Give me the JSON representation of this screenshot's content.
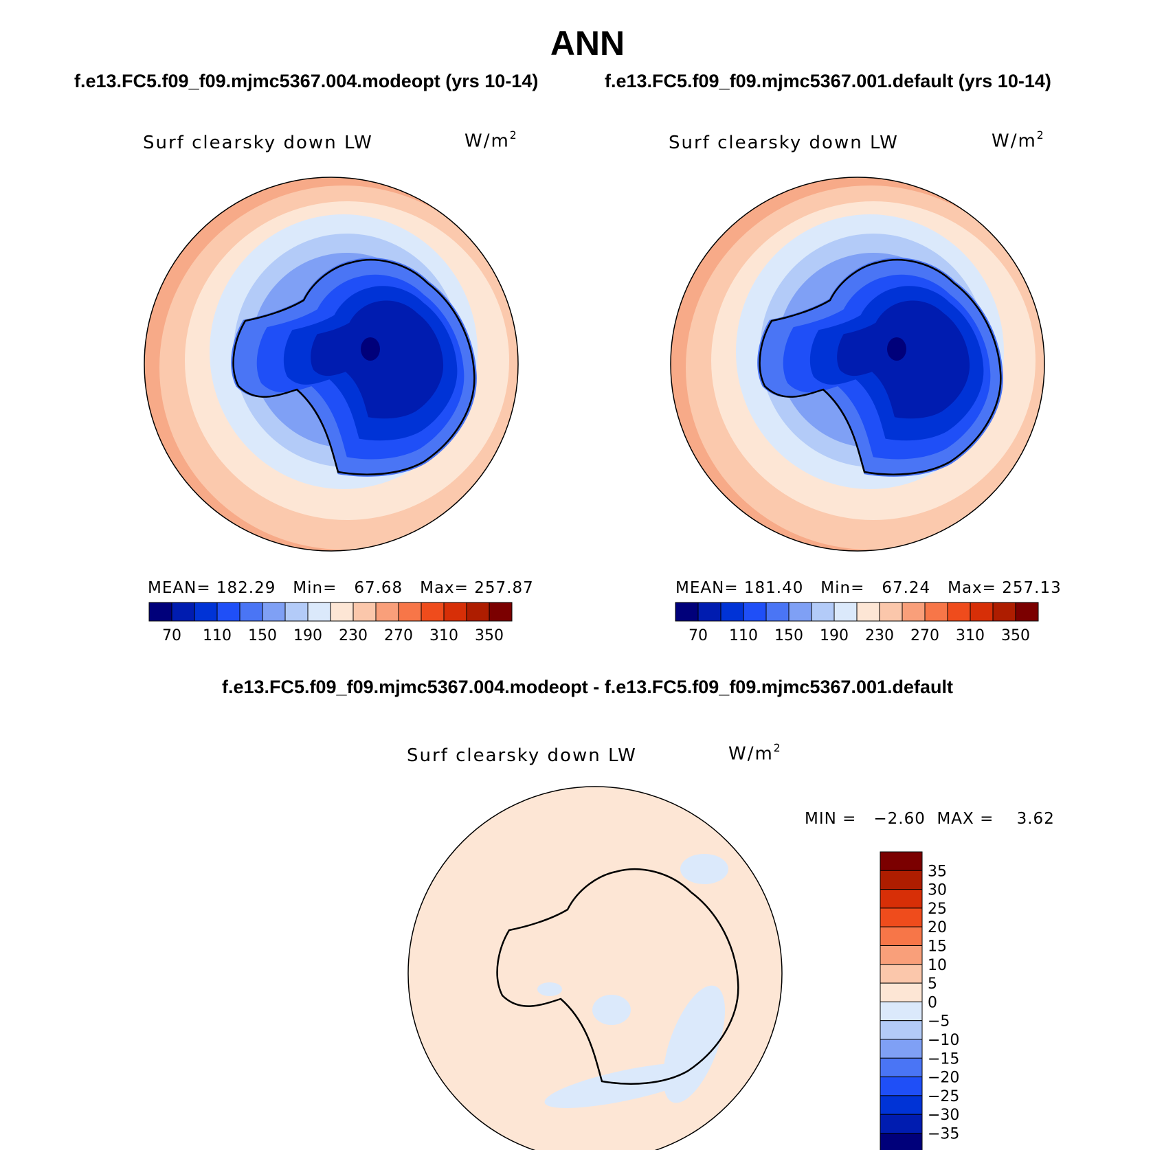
{
  "title": "ANN",
  "panels": [
    {
      "run_title": "f.e13.FC5.f09_f09.mjmc5367.004.modeopt (yrs 10-14)",
      "variable": "Surf clearsky down LW",
      "units_base": "W/m",
      "units_sup": "2",
      "stats": "MEAN= 182.29   Min=   67.68   Max= 257.87"
    },
    {
      "run_title": "f.e13.FC5.f09_f09.mjmc5367.001.default (yrs 10-14)",
      "variable": "Surf clearsky down LW",
      "units_base": "W/m",
      "units_sup": "2",
      "stats": "MEAN= 181.40   Min=   67.24   Max= 257.13"
    }
  ],
  "difference": {
    "title": "f.e13.FC5.f09_f09.mjmc5367.004.modeopt - f.e13.FC5.f09_f09.mjmc5367.001.default",
    "variable": "Surf clearsky down LW",
    "units_base": "W/m",
    "units_sup": "2",
    "stats": "MIN =   −2.60  MAX =    3.62"
  },
  "colorbars": {
    "absolute": {
      "colors": [
        "#00007a",
        "#001cb0",
        "#0033d6",
        "#1f4ff7",
        "#4a75f5",
        "#7fa0f5",
        "#b3cbf8",
        "#dbe9fb",
        "#fde6d5",
        "#fbc7ab",
        "#f99f7a",
        "#f77648",
        "#ef4c1c",
        "#d72f07",
        "#ae1d00",
        "#7b0000"
      ],
      "labels": [
        "70",
        "110",
        "150",
        "190",
        "230",
        "270",
        "310",
        "350"
      ]
    },
    "difference": {
      "colors": [
        "#00007a",
        "#001cb0",
        "#0033d6",
        "#1f4ff7",
        "#4a75f5",
        "#7fa0f5",
        "#b3cbf8",
        "#dbe9fb",
        "#fde6d5",
        "#fbc7ab",
        "#f99f7a",
        "#f77648",
        "#ef4c1c",
        "#d72f07",
        "#ae1d00",
        "#7b0000"
      ],
      "labels": [
        "−35",
        "−30",
        "−25",
        "−20",
        "−15",
        "−10",
        "−5",
        "0",
        "5",
        "10",
        "15",
        "20",
        "25",
        "30",
        "35"
      ]
    }
  },
  "map_colors": {
    "ring_outer": "#f7aa88",
    "ring_2": "#fbc9ad",
    "ring_3": "#fde6d5",
    "ocean_1": "#dbe9fb",
    "ocean_2": "#b3cbf8",
    "ocean_3": "#7fa0f5",
    "ice_1": "#4a75f5",
    "ice_2": "#1f4ff7",
    "ice_3": "#0033d6",
    "ice_4": "#001cb0",
    "ice_core": "#00007a",
    "diff_background": "#fde6d5",
    "diff_negative": "#dbe9fb"
  }
}
